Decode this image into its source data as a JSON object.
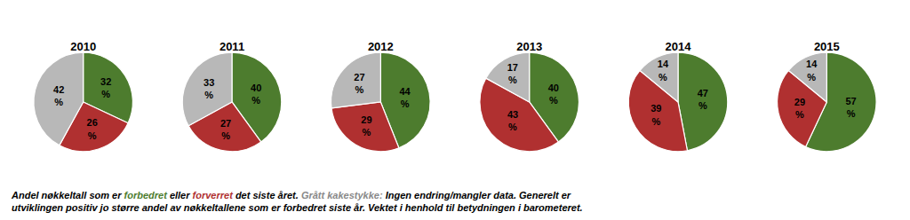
{
  "chart_data": [
    {
      "type": "pie",
      "title": "2010",
      "values": [
        32,
        26,
        42
      ],
      "value_labels": [
        "32\n%",
        "26\n%",
        "42\n%"
      ],
      "colors": [
        "#4d7c2e",
        "#b03030",
        "#b8b8b8"
      ],
      "data_labels": true,
      "annotations": [
        [
          {
            "text": "Andel nøkkeltall som er ",
            "color": "#000000"
          },
          {
            "text": "forbedret",
            "color": "#4d7c2e"
          },
          {
            "text": " eller ",
            "color": "#000000"
          },
          {
            "text": "forverret",
            "color": "#b03030"
          },
          {
            "text": " det siste året. ",
            "color": "#000000"
          },
          {
            "text": "Grått kakestykke:",
            "color": "#888888"
          },
          {
            "text": " Ingen endring/mangler data. Generelt er",
            "color": "#000000"
          }
        ],
        [
          {
            "text": "utviklingen positiv jo større andel av nøkkeltallene som er forbedret siste år. Vektet i henhold til betydningen i barometeret.",
            "color": "#000000"
          }
        ]
      ]
    },
    {
      "type": "pie",
      "title": "2011",
      "values": [
        40,
        27,
        33
      ],
      "value_labels": [
        "40\n%",
        "27\n%",
        "33\n%"
      ],
      "colors": [
        "#4d7c2e",
        "#b03030",
        "#b8b8b8"
      ],
      "data_labels": true
    },
    {
      "type": "pie",
      "title": "2012",
      "values": [
        44,
        29,
        27
      ],
      "value_labels": [
        "44\n%",
        "29\n%",
        "27\n%"
      ],
      "colors": [
        "#4d7c2e",
        "#b03030",
        "#b8b8b8"
      ],
      "data_labels": true
    },
    {
      "type": "pie",
      "title": "2013",
      "values": [
        40,
        43,
        17
      ],
      "value_labels": [
        "40\n%",
        "43\n%",
        "17\n%"
      ],
      "colors": [
        "#4d7c2e",
        "#b03030",
        "#b8b8b8"
      ],
      "data_labels": true
    },
    {
      "type": "pie",
      "title": "2014",
      "values": [
        47,
        39,
        14
      ],
      "value_labels": [
        "47\n%",
        "39\n%",
        "14\n%"
      ],
      "colors": [
        "#4d7c2e",
        "#b03030",
        "#b8b8b8"
      ],
      "data_labels": true
    },
    {
      "type": "pie",
      "title": "2015",
      "values": [
        57,
        29,
        14
      ],
      "value_labels": [
        "57\n%",
        "29\n%",
        "14\n%"
      ],
      "colors": [
        "#4d7c2e",
        "#b03030",
        "#b8b8b8"
      ],
      "data_labels": true
    }
  ]
}
